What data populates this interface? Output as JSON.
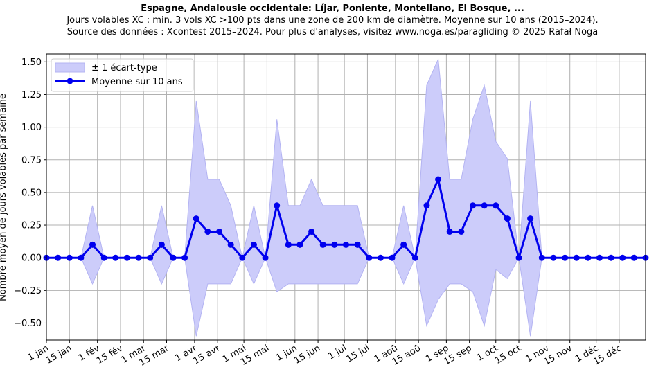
{
  "chart_data": {
    "type": "line",
    "title": "Espagne, Andalousie occidentale: Líjar, Poniente, Montellano, El Bosque, ...",
    "subtitle_lines": [
      "Jours volables XC : min. 3 vols XC >100 pts dans une zone de 200 km de diamètre. Moyenne sur 10 ans (2015–2024).",
      "Source des données : Xcontest 2015–2024. Pour plus d'analyses, visitez www.noga.es/paragliding © 2025 Rafał Noga"
    ],
    "ylabel": "Nombre moyen de jours volables par semaine",
    "xlabel": "",
    "ylim": [
      -0.63,
      1.56
    ],
    "xlim": [
      1,
      53
    ],
    "grid": true,
    "legend_position": "top-left",
    "yticks": [
      {
        "value": -0.5,
        "label": "−0.50"
      },
      {
        "value": -0.25,
        "label": "−0.25"
      },
      {
        "value": 0,
        "label": "0.00"
      },
      {
        "value": 0.25,
        "label": "0.25"
      },
      {
        "value": 0.5,
        "label": "0.50"
      },
      {
        "value": 0.75,
        "label": "0.75"
      },
      {
        "value": 1.0,
        "label": "1.00"
      },
      {
        "value": 1.25,
        "label": "1.25"
      },
      {
        "value": 1.5,
        "label": "1.50"
      }
    ],
    "xticks": [
      {
        "week": 1,
        "label": "1 jan"
      },
      {
        "week": 3,
        "label": "15 jan"
      },
      {
        "week": 5.43,
        "label": "1 fév"
      },
      {
        "week": 7.43,
        "label": "15 fév"
      },
      {
        "week": 9.43,
        "label": "1 mar"
      },
      {
        "week": 11.43,
        "label": "15 mar"
      },
      {
        "week": 13.86,
        "label": "1 avr"
      },
      {
        "week": 15.86,
        "label": "15 avr"
      },
      {
        "week": 18.14,
        "label": "1 mai"
      },
      {
        "week": 20.14,
        "label": "15 mai"
      },
      {
        "week": 22.57,
        "label": "1 jun"
      },
      {
        "week": 24.57,
        "label": "15 jun"
      },
      {
        "week": 26.86,
        "label": "1 jul"
      },
      {
        "week": 28.86,
        "label": "15 jul"
      },
      {
        "week": 31.29,
        "label": "1 aoû"
      },
      {
        "week": 33.29,
        "label": "15 aoû"
      },
      {
        "week": 35.71,
        "label": "1 sep"
      },
      {
        "week": 37.71,
        "label": "15 sep"
      },
      {
        "week": 40.0,
        "label": "1 oct"
      },
      {
        "week": 42.0,
        "label": "15 oct"
      },
      {
        "week": 44.43,
        "label": "1 nov"
      },
      {
        "week": 46.43,
        "label": "15 nov"
      },
      {
        "week": 48.71,
        "label": "1 déc"
      },
      {
        "week": 50.71,
        "label": "15 déc"
      }
    ],
    "x": [
      1,
      2,
      3,
      4,
      5,
      6,
      7,
      8,
      9,
      10,
      11,
      12,
      13,
      14,
      15,
      16,
      17,
      18,
      19,
      20,
      21,
      22,
      23,
      24,
      25,
      26,
      27,
      28,
      29,
      30,
      31,
      32,
      33,
      34,
      35,
      36,
      37,
      38,
      39,
      40,
      41,
      42,
      43,
      44,
      45,
      46,
      47,
      48,
      49,
      50,
      51,
      52,
      53
    ],
    "series": [
      {
        "name": "Moyenne sur 10 ans",
        "color": "#0000ee",
        "values": [
          0,
          0,
          0,
          0,
          0.1,
          0,
          0,
          0,
          0,
          0,
          0.1,
          0,
          0,
          0.3,
          0.2,
          0.2,
          0.1,
          0,
          0.1,
          0,
          0.4,
          0.1,
          0.1,
          0.2,
          0.1,
          0.1,
          0.1,
          0.1,
          0,
          0,
          0,
          0.1,
          0,
          0.4,
          0.6,
          0.2,
          0.2,
          0.4,
          0.4,
          0.4,
          0.3,
          0,
          0.3,
          0,
          0,
          0,
          0,
          0,
          0,
          0,
          0,
          0,
          0
        ]
      },
      {
        "name": "± 1 écart-type",
        "color": "#ccccfa",
        "edge_color": "#b3b3f2",
        "upper": [
          0,
          0,
          0,
          0,
          0.4,
          0,
          0,
          0,
          0,
          0,
          0.4,
          0,
          0,
          1.2,
          0.6,
          0.6,
          0.4,
          0,
          0.4,
          0,
          1.06,
          0.4,
          0.4,
          0.6,
          0.4,
          0.4,
          0.4,
          0.4,
          0,
          0,
          0,
          0.4,
          0,
          1.32,
          1.52,
          0.6,
          0.6,
          1.06,
          1.32,
          0.89,
          0.76,
          0,
          1.2,
          0,
          0,
          0,
          0,
          0,
          0,
          0,
          0,
          0,
          0
        ],
        "lower": [
          0,
          0,
          0,
          0,
          -0.2,
          0,
          0,
          0,
          0,
          0,
          -0.2,
          0,
          0,
          -0.6,
          -0.2,
          -0.2,
          -0.2,
          0,
          -0.2,
          0,
          -0.26,
          -0.2,
          -0.2,
          -0.2,
          -0.2,
          -0.2,
          -0.2,
          -0.2,
          0,
          0,
          0,
          -0.2,
          0,
          -0.52,
          -0.32,
          -0.2,
          -0.2,
          -0.26,
          -0.52,
          -0.09,
          -0.16,
          0,
          -0.6,
          0,
          0,
          0,
          0,
          0,
          0,
          0,
          0,
          0,
          0
        ]
      }
    ]
  }
}
